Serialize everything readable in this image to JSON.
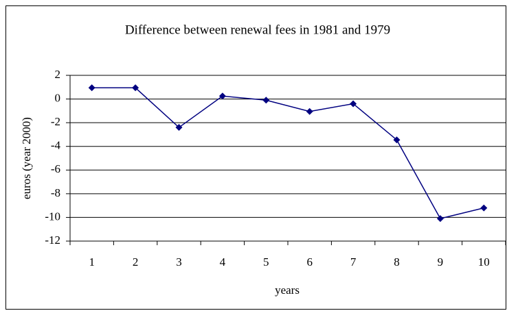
{
  "chart_data": {
    "type": "line",
    "title": "Difference between renewal fees in 1981 and 1979",
    "x_label": "years",
    "y_label": "euros (year 2000)",
    "categories": [
      "1",
      "2",
      "3",
      "4",
      "5",
      "6",
      "7",
      "8",
      "9",
      "10"
    ],
    "values": [
      0.95,
      0.95,
      -2.4,
      0.25,
      -0.1,
      -1.05,
      -0.4,
      -3.45,
      -10.1,
      -9.2
    ],
    "color": "#000080",
    "ylim": [
      -12,
      2
    ],
    "yticks": [
      -12,
      -10,
      -8,
      -6,
      -4,
      -2,
      0,
      2
    ],
    "grid": true
  }
}
